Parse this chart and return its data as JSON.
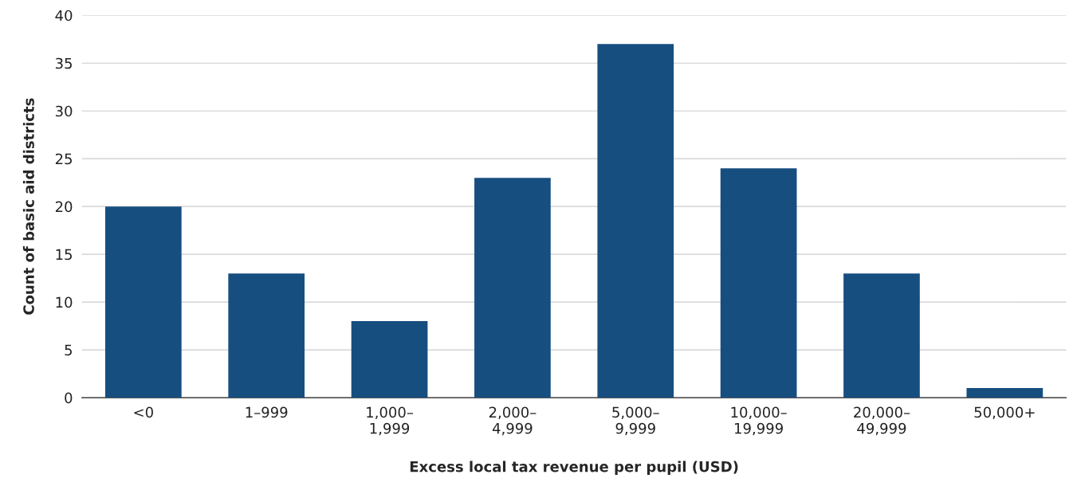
{
  "chart_data": {
    "type": "bar",
    "xlabel": "Excess local tax revenue per pupil (USD)",
    "ylabel": "Count of basic aid districts",
    "categories": [
      "<0",
      "1–999",
      "1,000–\n1,999",
      "2,000–\n4,999",
      "5,000–\n9,999",
      "10,000–\n19,999",
      "20,000–\n49,999",
      "50,000+"
    ],
    "values": [
      20,
      13,
      8,
      23,
      37,
      24,
      13,
      1
    ],
    "color": "#174e80",
    "ylim": [
      0,
      40
    ],
    "yticks": [
      0,
      5,
      10,
      15,
      20,
      25,
      30,
      35,
      40
    ],
    "grid": "y"
  }
}
